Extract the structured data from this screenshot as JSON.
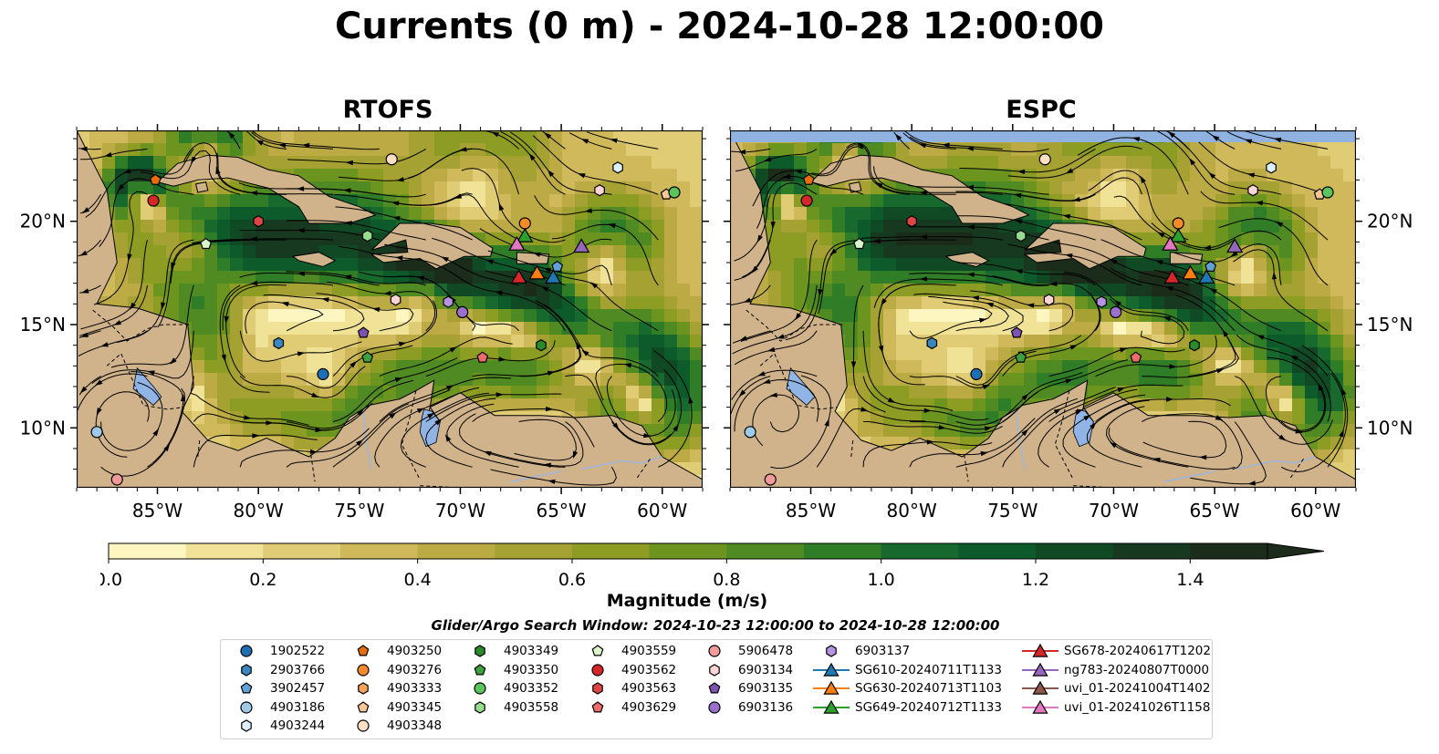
{
  "title": "Currents (0 m) - 2024-10-28 12:00:00",
  "panels": [
    {
      "title": "RTOFS"
    },
    {
      "title": "ESPC"
    }
  ],
  "axes": {
    "lon_ticks": [
      "85°W",
      "80°W",
      "75°W",
      "70°W",
      "65°W",
      "60°W"
    ],
    "lat_ticks": [
      "20°N",
      "15°N",
      "10°N"
    ]
  },
  "colorbar": {
    "label": "Magnitude (m/s)",
    "ticks": [
      "0.0",
      "0.2",
      "0.4",
      "0.6",
      "0.8",
      "1.0",
      "1.2",
      "1.4"
    ],
    "range": [
      0.0,
      1.5
    ],
    "extend": "max",
    "colors": [
      "#fdf6c1",
      "#f0e296",
      "#e0cc74",
      "#d0b95a",
      "#bcab45",
      "#a5a233",
      "#8d9d23",
      "#6c9520",
      "#4f8b22",
      "#2f7d27",
      "#18692d",
      "#0d5a2b",
      "#104a25",
      "#16391f",
      "#1b2d1a"
    ]
  },
  "search_window": "Glider/Argo Search Window: 2024-10-23 12:00:00 to 2024-10-28 12:00:00",
  "legend": {
    "columns": [
      [
        {
          "label": "1902522",
          "marker": "circle",
          "color": "#1f6fb4"
        },
        {
          "label": "2903766",
          "marker": "hexagon",
          "color": "#3a86c0"
        },
        {
          "label": "3902457",
          "marker": "pentagon",
          "color": "#5fa3d9"
        },
        {
          "label": "4903186",
          "marker": "circle",
          "color": "#9fcbea"
        },
        {
          "label": "4903244",
          "marker": "hexagon",
          "color": "#dcefff"
        }
      ],
      [
        {
          "label": "4903250",
          "marker": "pentagon",
          "color": "#e86d0c"
        },
        {
          "label": "4903276",
          "marker": "circle",
          "color": "#f58a2a"
        },
        {
          "label": "4903333",
          "marker": "hexagon",
          "color": "#f7a35a"
        },
        {
          "label": "4903345",
          "marker": "pentagon",
          "color": "#f9c795"
        },
        {
          "label": "4903348",
          "marker": "circle",
          "color": "#fde0c4"
        }
      ],
      [
        {
          "label": "4903349",
          "marker": "hexagon",
          "color": "#2a8b2a"
        },
        {
          "label": "4903350",
          "marker": "pentagon",
          "color": "#3da23d"
        },
        {
          "label": "4903352",
          "marker": "circle",
          "color": "#5cc45c"
        },
        {
          "label": "4903558",
          "marker": "hexagon",
          "color": "#98dc8e"
        }
      ],
      [
        {
          "label": "4903559",
          "marker": "pentagon",
          "color": "#d8f5cc"
        },
        {
          "label": "4903562",
          "marker": "circle",
          "color": "#d62728"
        },
        {
          "label": "4903563",
          "marker": "hexagon",
          "color": "#e04545"
        },
        {
          "label": "4903629",
          "marker": "pentagon",
          "color": "#ee6b6b"
        }
      ],
      [
        {
          "label": "5906478",
          "marker": "circle",
          "color": "#f29a9a"
        },
        {
          "label": "6903134",
          "marker": "hexagon",
          "color": "#fbd5d5"
        },
        {
          "label": "6903135",
          "marker": "pentagon",
          "color": "#7e52b0"
        },
        {
          "label": "6903136",
          "marker": "circle",
          "color": "#9b70cc"
        }
      ],
      [
        {
          "label": "6903137",
          "marker": "hexagon",
          "color": "#b693e0"
        },
        {
          "label": "SG610-20240711T1133",
          "marker": "triangle",
          "color": "#1f77b4"
        },
        {
          "label": "SG630-20240713T1103",
          "marker": "triangle",
          "color": "#ff7f0e"
        },
        {
          "label": "SG649-20240712T1133",
          "marker": "triangle",
          "color": "#2ca02c"
        }
      ],
      [
        {
          "label": "SG678-20240617T1202",
          "marker": "triangle",
          "color": "#d62728"
        },
        {
          "label": "ng783-20240807T0000",
          "marker": "triangle",
          "color": "#9467bd"
        },
        {
          "label": "uvi_01-20241004T1402",
          "marker": "triangle",
          "color": "#8c564b"
        },
        {
          "label": "uvi_01-20241026T1158",
          "marker": "triangle",
          "color": "#e377c2"
        }
      ]
    ]
  },
  "markers": [
    {
      "id": "4903250",
      "lon": -85.1,
      "lat": 22.0
    },
    {
      "id": "4903562",
      "lon": -85.2,
      "lat": 21.0
    },
    {
      "id": "4903563",
      "lon": -80.0,
      "lat": 20.0
    },
    {
      "id": "4903559",
      "lon": -82.6,
      "lat": 18.9
    },
    {
      "id": "4903558",
      "lon": -74.6,
      "lat": 19.3
    },
    {
      "id": "4903348",
      "lon": -73.4,
      "lat": 23.0
    },
    {
      "id": "4903244",
      "lon": -62.2,
      "lat": 22.6
    },
    {
      "id": "6903134",
      "lon": -63.1,
      "lat": 21.5
    },
    {
      "id": "4903345",
      "lon": -59.8,
      "lat": 21.3
    },
    {
      "id": "4903352",
      "lon": -59.4,
      "lat": 21.4
    },
    {
      "id": "4903276",
      "lon": -66.8,
      "lat": 19.9
    },
    {
      "id": "3902457",
      "lon": -65.2,
      "lat": 17.8
    },
    {
      "id": "6903134",
      "lon": -73.2,
      "lat": 16.2
    },
    {
      "id": "6903137",
      "lon": -70.6,
      "lat": 16.1
    },
    {
      "id": "6903136",
      "lon": -69.9,
      "lat": 15.6
    },
    {
      "id": "6903135",
      "lon": -74.8,
      "lat": 14.6
    },
    {
      "id": "2903766",
      "lon": -79.0,
      "lat": 14.1
    },
    {
      "id": "4903350",
      "lon": -74.6,
      "lat": 13.4
    },
    {
      "id": "4903349",
      "lon": -66.0,
      "lat": 14.0
    },
    {
      "id": "4903629",
      "lon": -68.9,
      "lat": 13.4
    },
    {
      "id": "1902522",
      "lon": -76.8,
      "lat": 12.6
    },
    {
      "id": "4903186",
      "lon": -88.0,
      "lat": 9.8
    },
    {
      "id": "5906478",
      "lon": -87.0,
      "lat": 7.5
    }
  ],
  "gliders": [
    {
      "id": "SG678-20240617T1202",
      "lon": -67.1,
      "lat": 17.3
    },
    {
      "id": "SG630-20240713T1103",
      "lon": -66.2,
      "lat": 17.5
    },
    {
      "id": "SG610-20240711T1133",
      "lon": -65.4,
      "lat": 17.3
    },
    {
      "id": "SG649-20240712T1133",
      "lon": -66.8,
      "lat": 19.3
    },
    {
      "id": "uvi_01-20241026T1158",
      "lon": -67.2,
      "lat": 18.9
    },
    {
      "id": "ng783-20240807T0000",
      "lon": -64.0,
      "lat": 18.8
    }
  ],
  "map_colors": {
    "land": "#d0b38b",
    "lake": "#90b4e6",
    "ocean_base": "#c3b150"
  }
}
